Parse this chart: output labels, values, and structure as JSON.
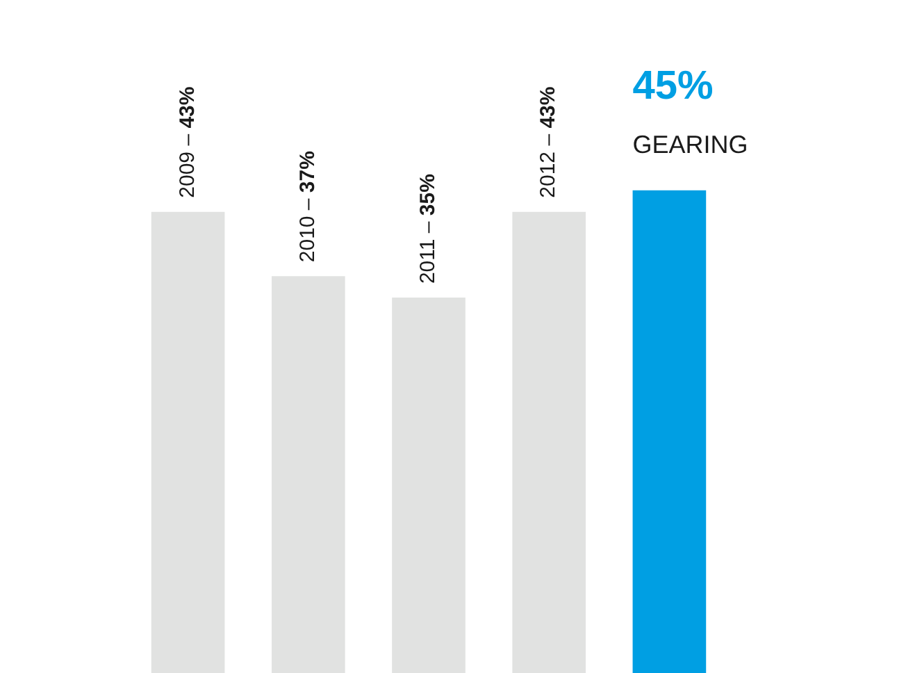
{
  "chart_data": {
    "type": "bar",
    "title": "GEARING",
    "categories": [
      "2009 – 43%",
      "2010 – 37%",
      "2011 – 35%",
      "2012 – 43%",
      null
    ],
    "values": [
      43,
      37,
      35,
      43,
      45
    ],
    "colors": [
      "#e1e2e1",
      "#e1e2e1",
      "#e1e2e1",
      "#e1e2e1",
      "#009fe3"
    ],
    "value_labels": [
      null,
      null,
      null,
      null,
      "45%"
    ],
    "legend": false
  }
}
